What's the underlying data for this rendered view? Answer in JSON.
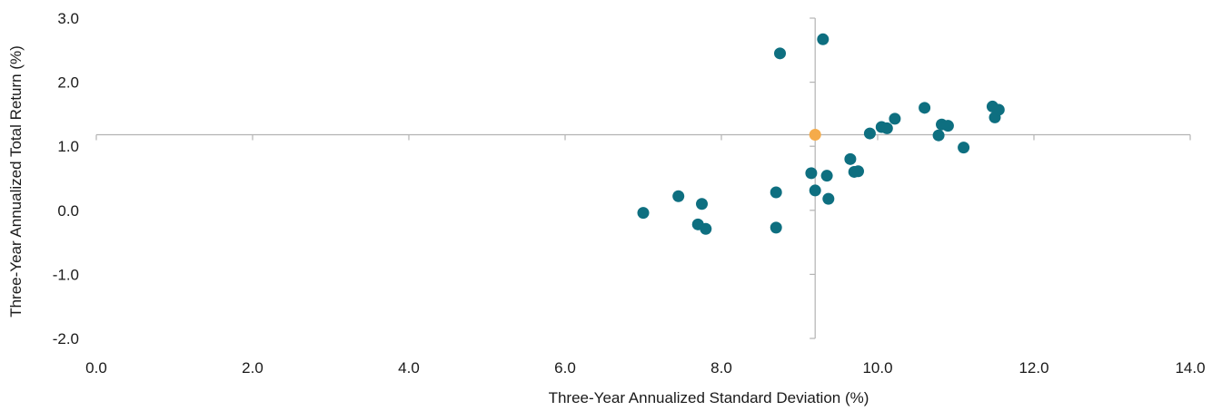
{
  "chart_data": {
    "type": "scatter",
    "title": "",
    "xlabel": "Three-Year Annualized Standard Deviation (%)",
    "ylabel": "Three-Year Annualized Total Return (%)",
    "xlim": [
      0,
      14
    ],
    "ylim": [
      -2,
      3
    ],
    "xticks": [
      "0.0",
      "2.0",
      "4.0",
      "6.0",
      "8.0",
      "10.0",
      "12.0",
      "14.0"
    ],
    "yticks": [
      "3.0",
      "2.0",
      "1.0",
      "0.0",
      "-1.0",
      "-2.0"
    ],
    "grid": false,
    "crosshair": {
      "x": 9.2,
      "y": 1.18
    },
    "colors": {
      "series": "#0e6f80",
      "highlight": "#f5ab4a",
      "axis": "#b3b3b3"
    },
    "series": [
      {
        "color": "#0e6f80",
        "points": [
          [
            7.0,
            -0.04
          ],
          [
            7.45,
            0.22
          ],
          [
            7.7,
            -0.22
          ],
          [
            7.75,
            0.1
          ],
          [
            7.8,
            -0.29
          ],
          [
            8.7,
            0.28
          ],
          [
            8.7,
            -0.27
          ],
          [
            8.75,
            2.45
          ],
          [
            9.15,
            0.58
          ],
          [
            9.2,
            0.31
          ],
          [
            9.3,
            2.67
          ],
          [
            9.35,
            0.54
          ],
          [
            9.37,
            0.18
          ],
          [
            9.65,
            0.8
          ],
          [
            9.7,
            0.6
          ],
          [
            9.75,
            0.61
          ],
          [
            9.9,
            1.2
          ],
          [
            10.05,
            1.3
          ],
          [
            10.12,
            1.28
          ],
          [
            10.22,
            1.43
          ],
          [
            10.6,
            1.6
          ],
          [
            10.78,
            1.17
          ],
          [
            10.82,
            1.34
          ],
          [
            10.9,
            1.32
          ],
          [
            11.1,
            0.98
          ],
          [
            11.47,
            1.62
          ],
          [
            11.5,
            1.45
          ],
          [
            11.55,
            1.57
          ]
        ]
      },
      {
        "color": "#f5ab4a",
        "points": [
          [
            9.2,
            1.18
          ]
        ]
      }
    ]
  }
}
